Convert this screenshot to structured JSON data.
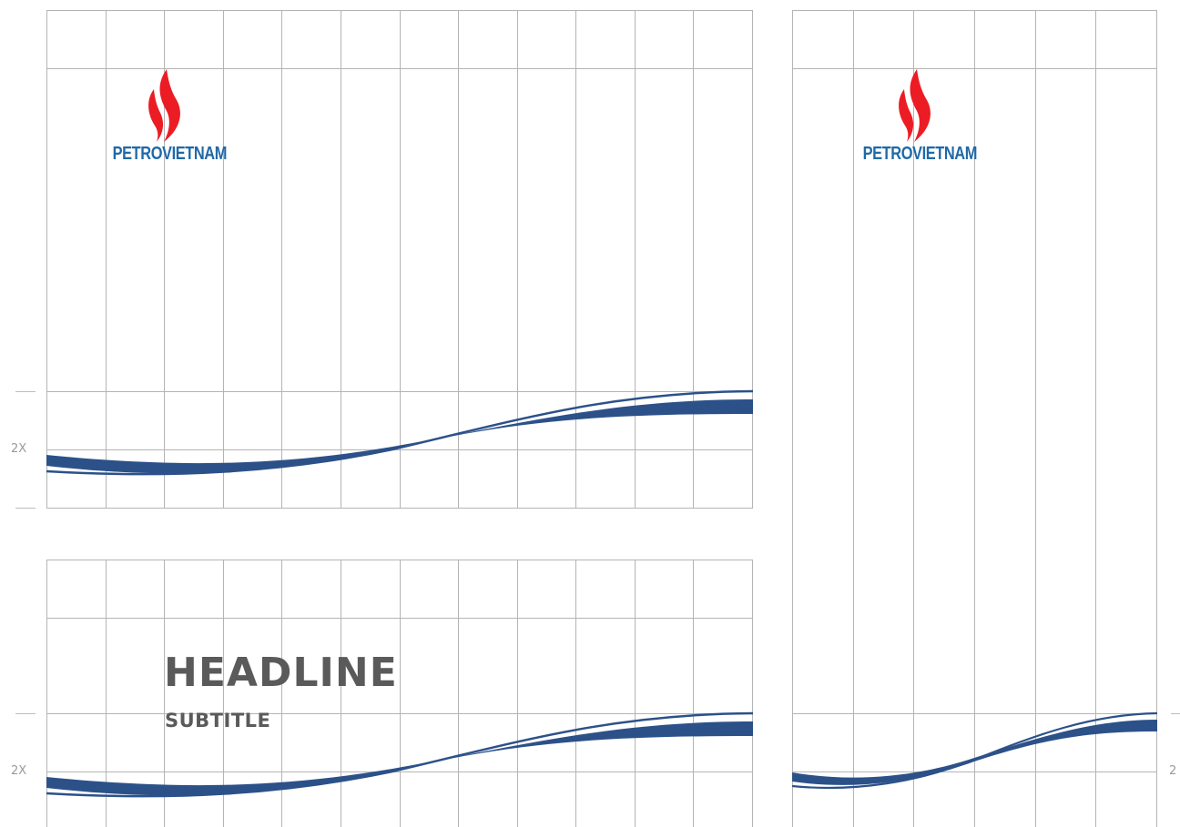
{
  "colors": {
    "grid": "#b4b4b4",
    "wave": "#2c5189",
    "flame": "#ec1c24",
    "brand_text": "#1f69a8",
    "headline": "#5a5a5a",
    "scale_label": "#9a9a9a"
  },
  "brand": {
    "name": "PETROVIETNAM"
  },
  "panels": {
    "top_left": {
      "scale_label": "2X"
    },
    "bottom_left": {
      "headline": "HEADLINE",
      "subtitle": "SUBTITLE",
      "scale_label": "2X"
    },
    "right": {
      "scale_label": "2"
    }
  }
}
